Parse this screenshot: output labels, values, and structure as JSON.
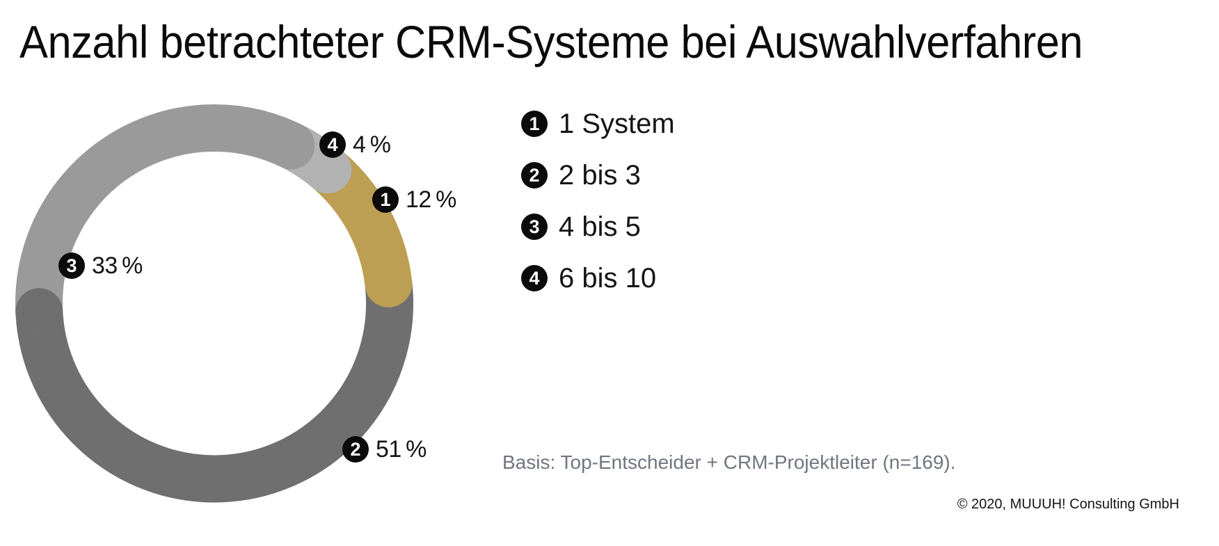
{
  "title": "Anzahl betrachteter CRM-Systeme bei Auswahlverfahren",
  "chart_data": {
    "type": "pie",
    "subtype": "donut",
    "title": "Anzahl betrachteter CRM-Systeme bei Auswahlverfahren",
    "unit": "%",
    "segments": [
      {
        "id": "1",
        "label": "1 System",
        "value": 12,
        "display": "12 %",
        "color": "#BD9F53"
      },
      {
        "id": "2",
        "label": "2 bis 3",
        "value": 51,
        "display": "51 %",
        "color": "#6F6F6F"
      },
      {
        "id": "3",
        "label": "4 bis 5",
        "value": 33,
        "display": "33 %",
        "color": "#9A9A9A"
      },
      {
        "id": "4",
        "label": "6 bis 10",
        "value": 4,
        "display": "4 %",
        "color": "#B2B2B2"
      }
    ],
    "order_clockwise": [
      "4",
      "1",
      "2",
      "3"
    ],
    "start_angle_deg": 26,
    "legend_position": "right",
    "badge_color": "#0B0B0B"
  },
  "footer": {
    "basis_note": "Basis: Top-Entscheider + CRM-Projektleiter (n=169).",
    "copyright": "© 2020, MUUUH! Consulting GmbH"
  }
}
